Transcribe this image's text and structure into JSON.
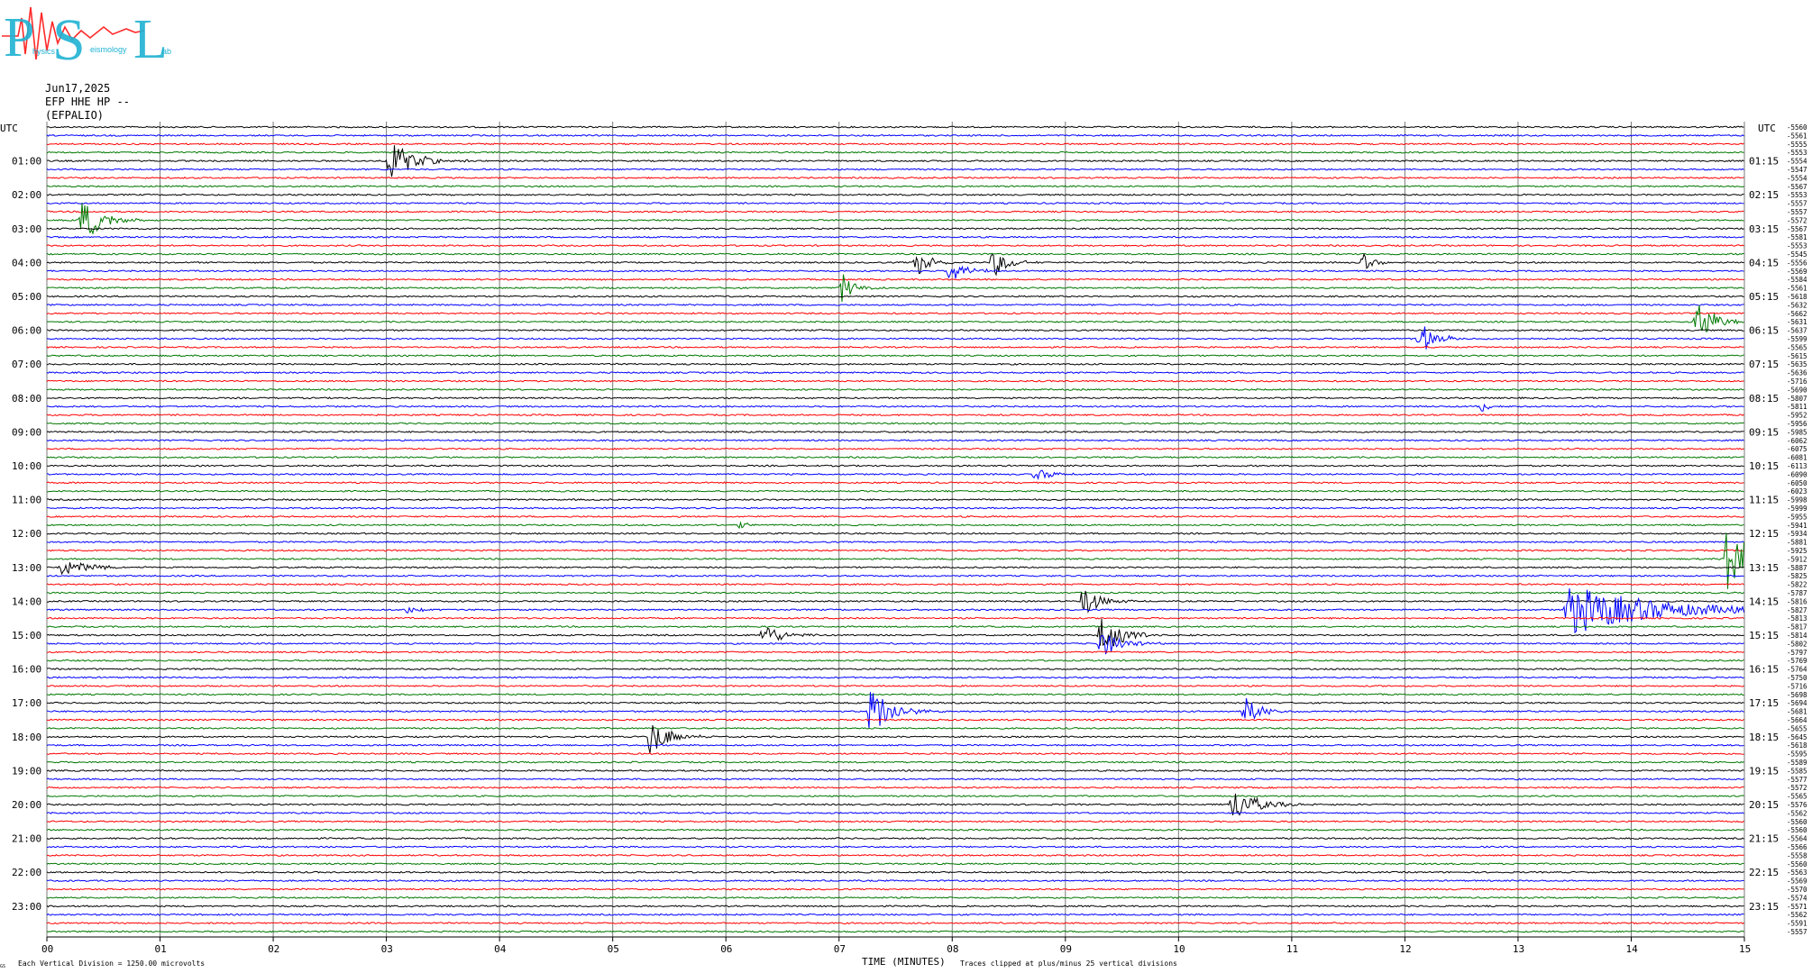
{
  "logo": {
    "letters": "PSL",
    "subtext": "Physics Seismology Lab"
  },
  "header": {
    "date": "Jun17,2025",
    "station": "EFP HHE HP --",
    "network": "(EFPALIO)"
  },
  "axis": {
    "left_utc": "UTC",
    "right_utc": "UTC",
    "xlabel": "TIME (MINUTES)",
    "footer_left": "Each Vertical Division = 1250.00 microvolts",
    "footer_right": "Traces clipped at plus/minus 25 vertical divisions",
    "corner_mark": "GS"
  },
  "colors": {
    "black": "#000000",
    "red": "#ff0000",
    "blue": "#0000ff",
    "green": "#007800",
    "grid": "#7a7a7a"
  },
  "chart_data": {
    "type": "line",
    "title": "",
    "x_ticks": [
      "00",
      "01",
      "02",
      "03",
      "04",
      "05",
      "06",
      "07",
      "08",
      "09",
      "10",
      "11",
      "12",
      "13",
      "14",
      "15"
    ],
    "xlim": [
      0,
      15
    ],
    "left_hour_labels": [
      "01:00",
      "02:00",
      "03:00",
      "04:00",
      "05:00",
      "06:00",
      "07:00",
      "08:00",
      "09:00",
      "10:00",
      "11:00",
      "12:00",
      "13:00",
      "14:00",
      "15:00",
      "16:00",
      "17:00",
      "18:00",
      "19:00",
      "20:00",
      "21:00",
      "22:00",
      "23:00"
    ],
    "right_hour_labels": [
      "01:15",
      "02:15",
      "03:15",
      "04:15",
      "05:15",
      "06:15",
      "07:15",
      "08:15",
      "09:15",
      "10:15",
      "11:15",
      "12:15",
      "13:15",
      "14:15",
      "15:15",
      "16:15",
      "17:15",
      "18:15",
      "19:15",
      "20:15",
      "21:15",
      "22:15",
      "23:15"
    ],
    "trace_colors_cycle": [
      "black",
      "blue",
      "red",
      "green"
    ],
    "trace_values": [
      "-5560",
      "-5561",
      "-5555",
      "-5553",
      "-5554",
      "-5547",
      "-5554",
      "-5567",
      "-5553",
      "-5557",
      "-5557",
      "-5572",
      "-5567",
      "-5581",
      "-5553",
      "-5545",
      "-5556",
      "-5569",
      "-5584",
      "-5561",
      "-5618",
      "-5632",
      "-5662",
      "-5631",
      "-5637",
      "-5599",
      "-5565",
      "-5615",
      "-5635",
      "-5636",
      "-5716",
      "-5690",
      "-5807",
      "-5811",
      "-5952",
      "-5956",
      "-5985",
      "-6062",
      "-6075",
      "-6081",
      "-6113",
      "-6090",
      "-6050",
      "-6023",
      "-5998",
      "-5999",
      "-5955",
      "-5941",
      "-5934",
      "-5881",
      "-5925",
      "-5912",
      "-5887",
      "-5825",
      "-5822",
      "-5787",
      "-5816",
      "-5827",
      "-5813",
      "-5817",
      "-5814",
      "-5802",
      "-5797",
      "-5769",
      "-5764",
      "-5750",
      "-5716",
      "-5698",
      "-5694",
      "-5681",
      "-5664",
      "-5655",
      "-5645",
      "-5618",
      "-5595",
      "-5589",
      "-5585",
      "-5577",
      "-5572",
      "-5565",
      "-5576",
      "-5562",
      "-5560",
      "-5560",
      "-5564",
      "-5566",
      "-5558",
      "-5560",
      "-5563",
      "-5569",
      "-5570",
      "-5574",
      "-5571",
      "-5562",
      "-5591",
      "-5557"
    ],
    "events": [
      {
        "trace": 4,
        "minute": 3.0,
        "amp": 28,
        "dur": 0.3
      },
      {
        "trace": 11,
        "minute": 0.28,
        "amp": 32,
        "dur": 0.25
      },
      {
        "trace": 16,
        "minute": 7.65,
        "amp": 20,
        "dur": 0.2
      },
      {
        "trace": 16,
        "minute": 8.33,
        "amp": 22,
        "dur": 0.2
      },
      {
        "trace": 16,
        "minute": 11.6,
        "amp": 14,
        "dur": 0.15
      },
      {
        "trace": 17,
        "minute": 7.95,
        "amp": 22,
        "dur": 0.2
      },
      {
        "trace": 19,
        "minute": 7.0,
        "amp": 24,
        "dur": 0.15
      },
      {
        "trace": 23,
        "minute": 14.55,
        "amp": 38,
        "dur": 0.2
      },
      {
        "trace": 25,
        "minute": 12.1,
        "amp": 26,
        "dur": 0.2
      },
      {
        "trace": 33,
        "minute": 12.65,
        "amp": 10,
        "dur": 0.1
      },
      {
        "trace": 41,
        "minute": 8.7,
        "amp": 8,
        "dur": 0.3
      },
      {
        "trace": 47,
        "minute": 6.1,
        "amp": 7,
        "dur": 0.1
      },
      {
        "trace": 51,
        "minute": 14.8,
        "amp": 40,
        "dur": 0.5
      },
      {
        "trace": 52,
        "minute": 0.1,
        "amp": 10,
        "dur": 0.4
      },
      {
        "trace": 56,
        "minute": 9.12,
        "amp": 26,
        "dur": 0.2
      },
      {
        "trace": 57,
        "minute": 3.15,
        "amp": 6,
        "dur": 0.2
      },
      {
        "trace": 57,
        "minute": 13.4,
        "amp": 30,
        "dur": 1.2
      },
      {
        "trace": 60,
        "minute": 6.3,
        "amp": 22,
        "dur": 0.2
      },
      {
        "trace": 60,
        "minute": 9.28,
        "amp": 26,
        "dur": 0.3
      },
      {
        "trace": 61,
        "minute": 9.28,
        "amp": 18,
        "dur": 0.3
      },
      {
        "trace": 69,
        "minute": 7.25,
        "amp": 40,
        "dur": 0.25
      },
      {
        "trace": 69,
        "minute": 10.55,
        "amp": 22,
        "dur": 0.2
      },
      {
        "trace": 72,
        "minute": 5.3,
        "amp": 26,
        "dur": 0.25
      },
      {
        "trace": 80,
        "minute": 10.45,
        "amp": 24,
        "dur": 0.3
      }
    ]
  }
}
